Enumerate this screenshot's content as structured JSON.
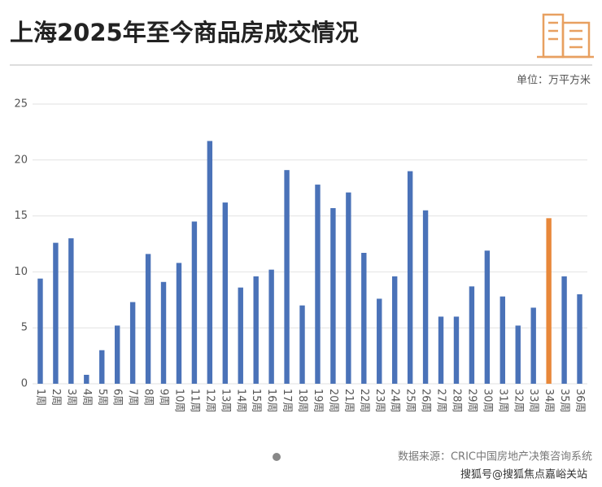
{
  "chart_data": {
    "type": "bar",
    "title": "上海2025年至今商品房成交情况",
    "unit": "单位：万平方米",
    "source": "数据来源：CRIC中国房地产决策咨询系统",
    "watermark": "搜狐号@搜狐焦点嘉峪关站",
    "categories": [
      "1周",
      "2周",
      "3周",
      "4周",
      "5周",
      "6周",
      "7周",
      "8周",
      "9周",
      "10周",
      "11周",
      "12周",
      "13周",
      "14周",
      "15周",
      "16周",
      "17周",
      "18周",
      "19周",
      "20周",
      "21周",
      "22周",
      "23周",
      "24周",
      "25周",
      "26周",
      "27周",
      "28周",
      "29周",
      "30周",
      "31周",
      "32周",
      "33周",
      "34周",
      "35周",
      "36周"
    ],
    "values": [
      9.4,
      12.6,
      13.0,
      0.8,
      3.0,
      5.2,
      7.3,
      11.6,
      9.1,
      10.8,
      14.5,
      21.7,
      16.2,
      8.6,
      9.6,
      10.2,
      19.1,
      7.0,
      17.8,
      15.7,
      17.1,
      11.7,
      7.6,
      9.6,
      19.0,
      15.5,
      6.0,
      6.0,
      8.7,
      11.9,
      7.8,
      5.2,
      6.8,
      14.8,
      9.6,
      8.0
    ],
    "colors": [
      "#4a72b8",
      "#4a72b8",
      "#4a72b8",
      "#4a72b8",
      "#4a72b8",
      "#4a72b8",
      "#4a72b8",
      "#4a72b8",
      "#4a72b8",
      "#4a72b8",
      "#4a72b8",
      "#4a72b8",
      "#4a72b8",
      "#4a72b8",
      "#4a72b8",
      "#4a72b8",
      "#4a72b8",
      "#4a72b8",
      "#4a72b8",
      "#4a72b8",
      "#4a72b8",
      "#4a72b8",
      "#4a72b8",
      "#4a72b8",
      "#4a72b8",
      "#4a72b8",
      "#4a72b8",
      "#4a72b8",
      "#4a72b8",
      "#4a72b8",
      "#4a72b8",
      "#4a72b8",
      "#4a72b8",
      "#e8883a",
      "#4a72b8",
      "#4a72b8"
    ],
    "ylim": [
      0,
      25
    ],
    "yticks": [
      0,
      5,
      10,
      15,
      20,
      25
    ],
    "grid": true
  }
}
